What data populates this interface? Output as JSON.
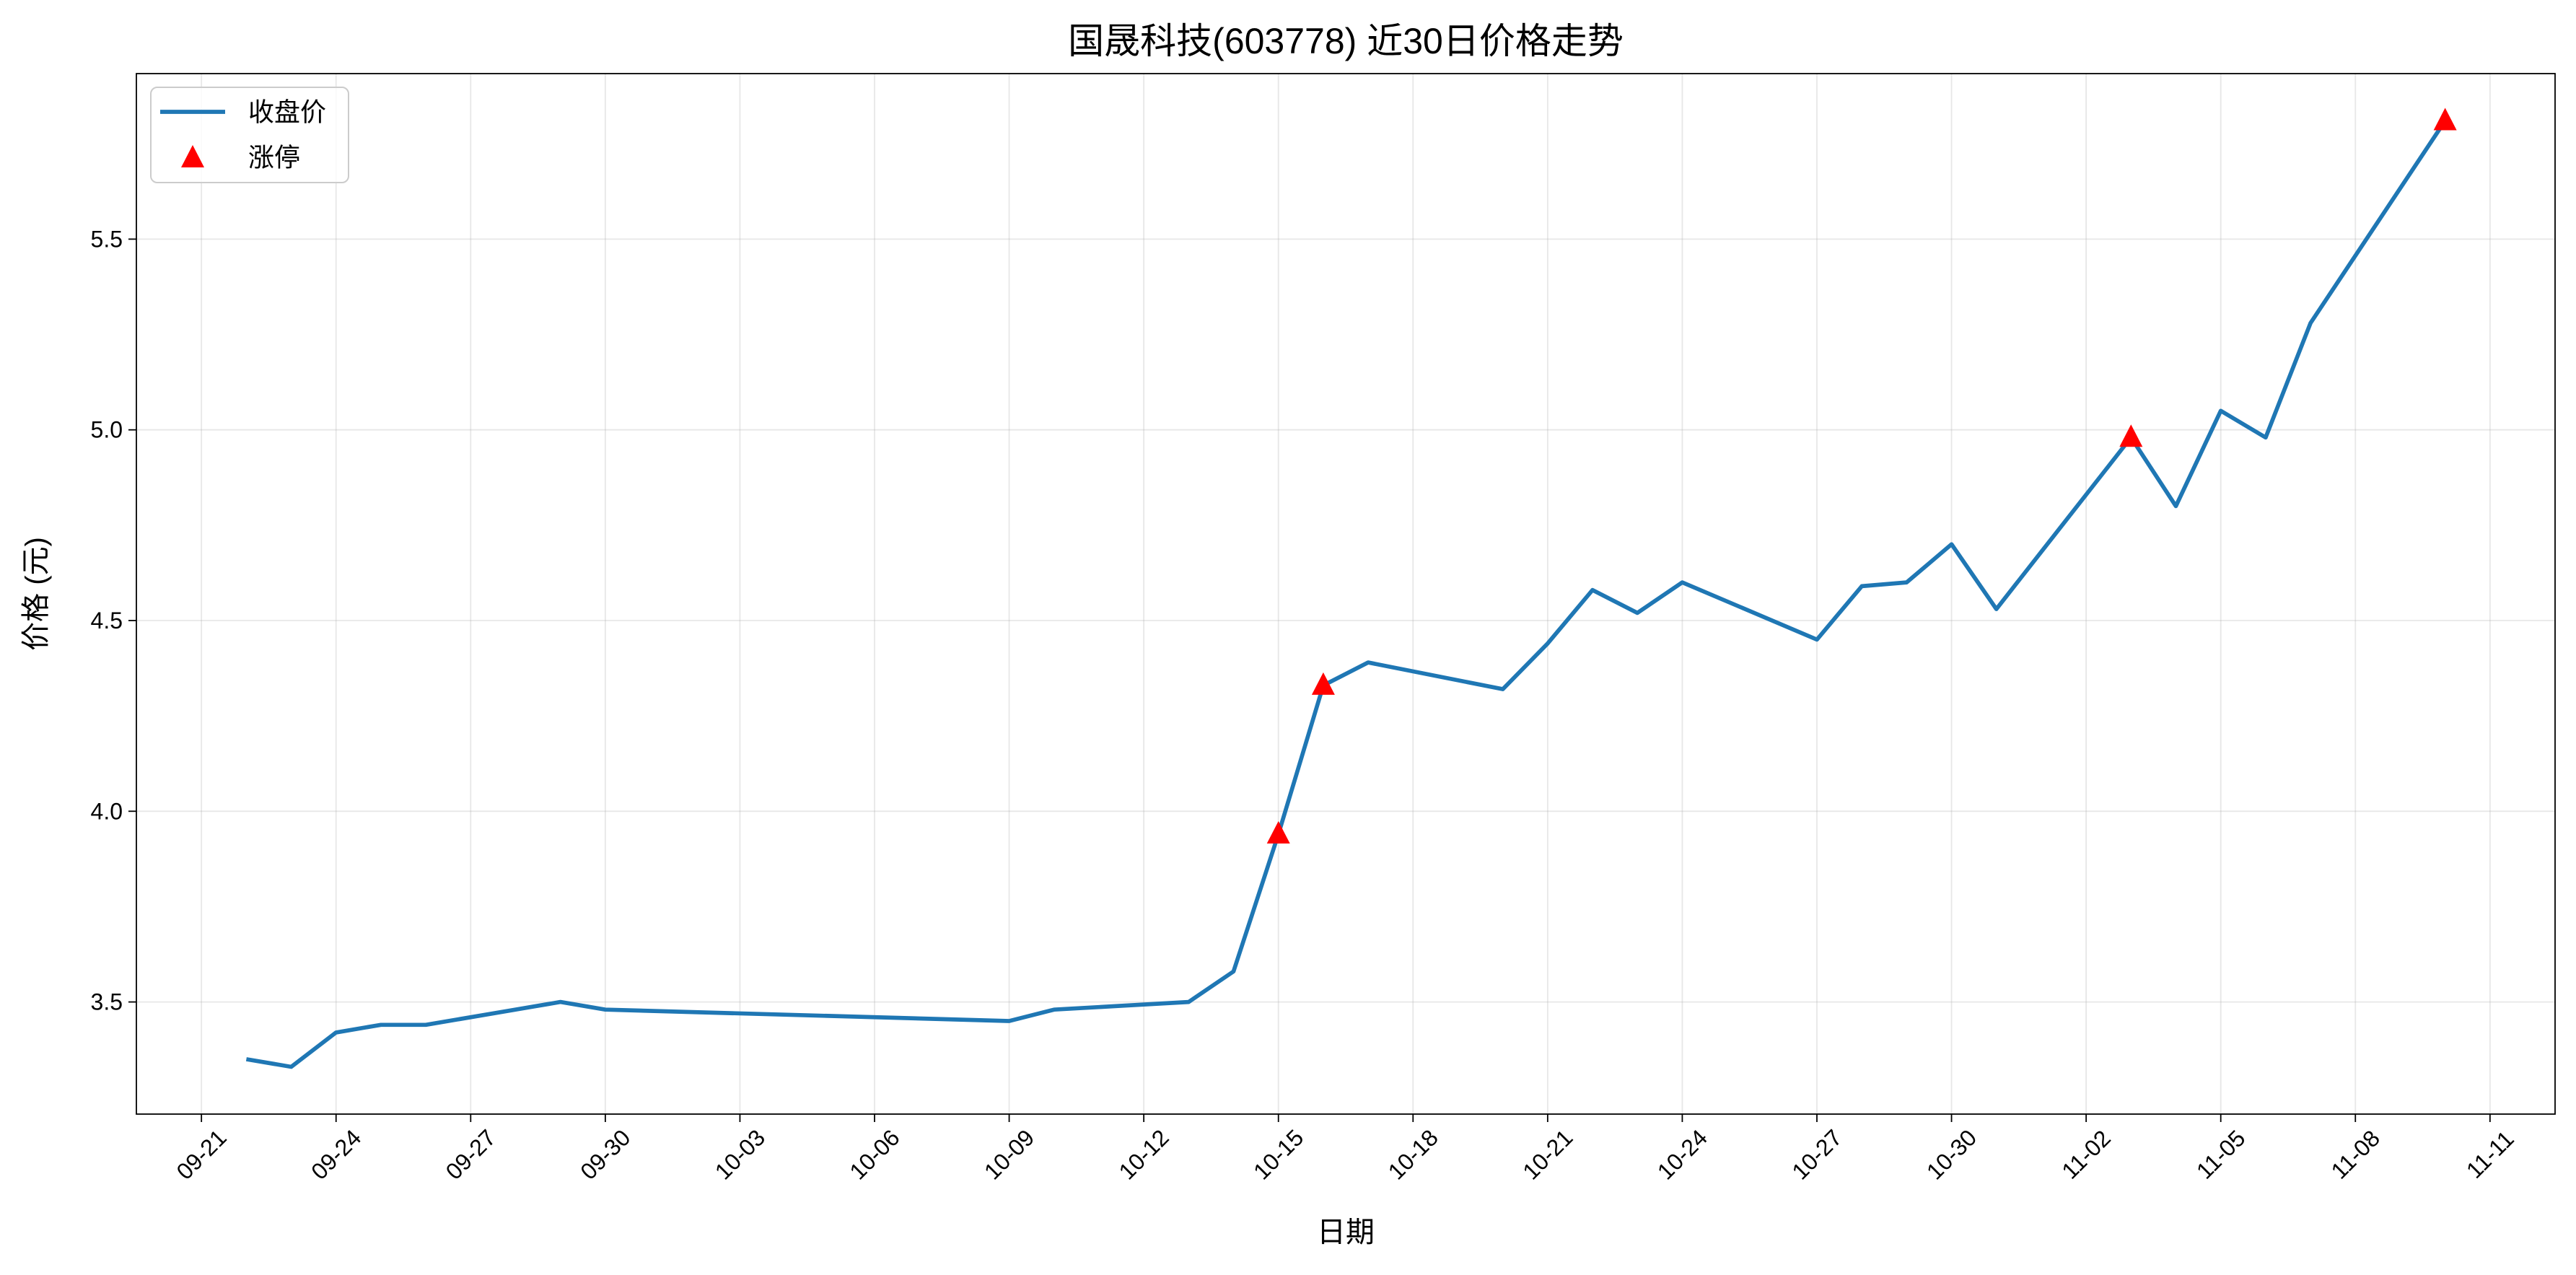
{
  "chart_data": {
    "type": "line",
    "title": "国晟科技(603778) 近30日价格走势",
    "xlabel": "日期",
    "ylabel": "价格 (元)",
    "ylim": [
      3.206,
      5.934
    ],
    "x_ticks": [
      "09-21",
      "09-24",
      "09-27",
      "09-30",
      "10-03",
      "10-06",
      "10-09",
      "10-12",
      "10-15",
      "10-18",
      "10-21",
      "10-24",
      "10-27",
      "10-30",
      "11-02",
      "11-05",
      "11-08",
      "11-11"
    ],
    "y_ticks": [
      "3.5",
      "4.0",
      "4.5",
      "5.0",
      "5.5"
    ],
    "grid": true,
    "legend_placement": "upper-left",
    "series": [
      {
        "name": "收盘价",
        "type": "line",
        "color": "#1f77b4",
        "x": [
          "09-22",
          "09-23",
          "09-24",
          "09-25",
          "09-26",
          "09-29",
          "09-30",
          "10-09",
          "10-10",
          "10-13",
          "10-14",
          "10-15",
          "10-16",
          "10-17",
          "10-20",
          "10-21",
          "10-22",
          "10-23",
          "10-24",
          "10-27",
          "10-28",
          "10-29",
          "10-30",
          "10-31",
          "11-03",
          "11-04",
          "11-05",
          "11-06",
          "11-07",
          "11-10"
        ],
        "y": [
          3.35,
          3.33,
          3.42,
          3.44,
          3.44,
          3.5,
          3.48,
          3.45,
          3.48,
          3.5,
          3.58,
          3.94,
          4.33,
          4.39,
          4.32,
          4.44,
          4.58,
          4.52,
          4.6,
          4.45,
          4.59,
          4.6,
          4.7,
          4.53,
          4.98,
          4.8,
          5.05,
          4.98,
          5.28,
          5.81
        ]
      },
      {
        "name": "涨停",
        "type": "scatter",
        "marker": "triangle-up",
        "color": "#ff0000",
        "x": [
          "10-15",
          "10-16",
          "11-03",
          "11-10"
        ],
        "y": [
          3.94,
          4.33,
          4.98,
          5.81
        ]
      }
    ]
  }
}
